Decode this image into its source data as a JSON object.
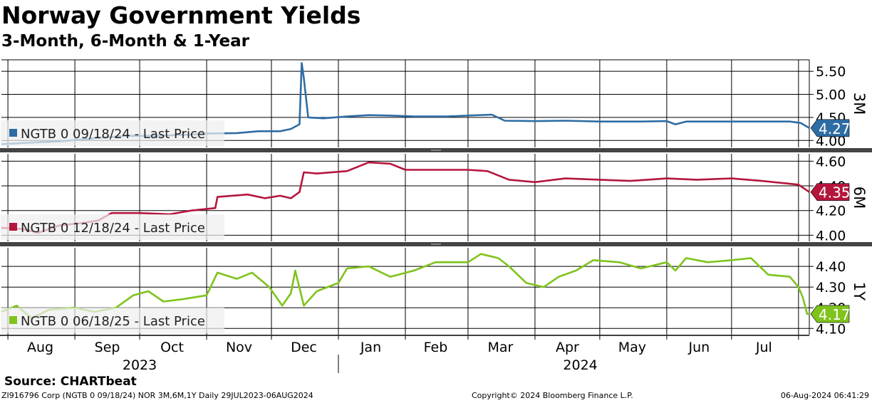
{
  "title": "Norway Government Yields",
  "subtitle": "3-Month, 6-Month & 1-Year",
  "source": "Source: CHARTbeat",
  "footer": {
    "left": "ZI916796 Corp (NGTB 0 09/18/24) NOR 3M,6M,1Y  Daily 29JUL2023-06AUG2024",
    "center": "Copyright© 2024 Bloomberg Finance L.P.",
    "right": "06-Aug-2024 06:41:29"
  },
  "chart_data": {
    "type": "line",
    "x_months": [
      "Aug",
      "Sep",
      "Oct",
      "Nov",
      "Dec",
      "Jan",
      "Feb",
      "Mar",
      "Apr",
      "May",
      "Jun",
      "Jul"
    ],
    "x_years": [
      "2023",
      "2024"
    ],
    "x_range": [
      "2023-07-29",
      "2024-08-06"
    ],
    "panels": [
      {
        "id": "3M",
        "axis_title": "3M",
        "legend": "NGTB 0 09/18/24 - Last Price",
        "color": "#2e6da4",
        "last_value": "4.27",
        "ylim": [
          3.85,
          5.75
        ],
        "yticks": [
          "5.50",
          "5.00",
          "4.50",
          "4.00"
        ],
        "points": [
          [
            "2023-07-29",
            3.92
          ],
          [
            "2023-08-10",
            3.95
          ],
          [
            "2023-08-25",
            3.98
          ],
          [
            "2023-09-10",
            4.05
          ],
          [
            "2023-09-25",
            4.1
          ],
          [
            "2023-10-10",
            4.1
          ],
          [
            "2023-10-25",
            4.13
          ],
          [
            "2023-11-01",
            4.15
          ],
          [
            "2023-11-15",
            4.16
          ],
          [
            "2023-11-25",
            4.2
          ],
          [
            "2023-12-05",
            4.2
          ],
          [
            "2023-12-10",
            4.25
          ],
          [
            "2023-12-14",
            4.35
          ],
          [
            "2023-12-15",
            5.68
          ],
          [
            "2023-12-16",
            5.35
          ],
          [
            "2023-12-18",
            4.5
          ],
          [
            "2023-12-25",
            4.48
          ],
          [
            "2024-01-05",
            4.52
          ],
          [
            "2024-01-15",
            4.55
          ],
          [
            "2024-01-25",
            4.54
          ],
          [
            "2024-02-05",
            4.52
          ],
          [
            "2024-02-20",
            4.52
          ],
          [
            "2024-03-01",
            4.54
          ],
          [
            "2024-03-12",
            4.56
          ],
          [
            "2024-03-18",
            4.43
          ],
          [
            "2024-04-01",
            4.42
          ],
          [
            "2024-04-15",
            4.43
          ],
          [
            "2024-05-01",
            4.41
          ],
          [
            "2024-05-20",
            4.41
          ],
          [
            "2024-06-01",
            4.42
          ],
          [
            "2024-06-05",
            4.35
          ],
          [
            "2024-06-10",
            4.41
          ],
          [
            "2024-06-25",
            4.41
          ],
          [
            "2024-07-10",
            4.41
          ],
          [
            "2024-07-28",
            4.41
          ],
          [
            "2024-08-02",
            4.38
          ],
          [
            "2024-08-06",
            4.27
          ]
        ]
      },
      {
        "id": "6M",
        "axis_title": "6M",
        "legend": "NGTB 0 12/18/24 - Last Price",
        "color": "#b5163c",
        "last_value": "4.35",
        "ylim": [
          3.95,
          4.66
        ],
        "yticks": [
          "4.60",
          "4.40",
          "4.20",
          "4.00"
        ],
        "points": [
          [
            "2023-07-29",
            4.06
          ],
          [
            "2023-08-08",
            4.05
          ],
          [
            "2023-08-15",
            4.02
          ],
          [
            "2023-08-25",
            4.08
          ],
          [
            "2023-09-05",
            4.1
          ],
          [
            "2023-09-12",
            4.12
          ],
          [
            "2023-09-18",
            4.18
          ],
          [
            "2023-10-01",
            4.18
          ],
          [
            "2023-10-15",
            4.17
          ],
          [
            "2023-10-25",
            4.2
          ],
          [
            "2023-11-05",
            4.22
          ],
          [
            "2023-11-06",
            4.31
          ],
          [
            "2023-11-20",
            4.33
          ],
          [
            "2023-11-28",
            4.3
          ],
          [
            "2023-12-05",
            4.32
          ],
          [
            "2023-12-10",
            4.3
          ],
          [
            "2023-12-14",
            4.35
          ],
          [
            "2023-12-16",
            4.51
          ],
          [
            "2023-12-22",
            4.5
          ],
          [
            "2024-01-05",
            4.52
          ],
          [
            "2024-01-15",
            4.59
          ],
          [
            "2024-01-25",
            4.58
          ],
          [
            "2024-02-01",
            4.53
          ],
          [
            "2024-02-15",
            4.53
          ],
          [
            "2024-03-01",
            4.53
          ],
          [
            "2024-03-10",
            4.52
          ],
          [
            "2024-03-20",
            4.45
          ],
          [
            "2024-04-01",
            4.43
          ],
          [
            "2024-04-15",
            4.46
          ],
          [
            "2024-05-01",
            4.45
          ],
          [
            "2024-05-15",
            4.44
          ],
          [
            "2024-06-01",
            4.46
          ],
          [
            "2024-06-15",
            4.45
          ],
          [
            "2024-07-01",
            4.46
          ],
          [
            "2024-07-15",
            4.44
          ],
          [
            "2024-08-01",
            4.41
          ],
          [
            "2024-08-06",
            4.35
          ]
        ]
      },
      {
        "id": "1Y",
        "axis_title": "1Y",
        "legend": "NGTB 0 06/18/25 - Last Price",
        "color": "#7fc31c",
        "last_value": "4.17",
        "ylim": [
          4.07,
          4.49
        ],
        "yticks": [
          "4.40",
          "4.30",
          "4.20",
          "4.10"
        ],
        "points": [
          [
            "2023-07-29",
            4.18
          ],
          [
            "2023-08-05",
            4.21
          ],
          [
            "2023-08-12",
            4.15
          ],
          [
            "2023-08-20",
            4.19
          ],
          [
            "2023-09-01",
            4.2
          ],
          [
            "2023-09-10",
            4.18
          ],
          [
            "2023-09-20",
            4.2
          ],
          [
            "2023-09-28",
            4.26
          ],
          [
            "2023-10-05",
            4.28
          ],
          [
            "2023-10-12",
            4.23
          ],
          [
            "2023-10-20",
            4.24
          ],
          [
            "2023-11-01",
            4.26
          ],
          [
            "2023-11-06",
            4.37
          ],
          [
            "2023-11-15",
            4.34
          ],
          [
            "2023-11-22",
            4.37
          ],
          [
            "2023-11-30",
            4.3
          ],
          [
            "2023-12-06",
            4.21
          ],
          [
            "2023-12-10",
            4.27
          ],
          [
            "2023-12-12",
            4.38
          ],
          [
            "2023-12-16",
            4.21
          ],
          [
            "2023-12-22",
            4.28
          ],
          [
            "2024-01-01",
            4.32
          ],
          [
            "2024-01-05",
            4.39
          ],
          [
            "2024-01-15",
            4.4
          ],
          [
            "2024-01-25",
            4.35
          ],
          [
            "2024-02-05",
            4.38
          ],
          [
            "2024-02-15",
            4.42
          ],
          [
            "2024-03-01",
            4.42
          ],
          [
            "2024-03-07",
            4.46
          ],
          [
            "2024-03-15",
            4.44
          ],
          [
            "2024-03-20",
            4.4
          ],
          [
            "2024-03-28",
            4.32
          ],
          [
            "2024-04-05",
            4.3
          ],
          [
            "2024-04-12",
            4.35
          ],
          [
            "2024-04-20",
            4.38
          ],
          [
            "2024-04-28",
            4.43
          ],
          [
            "2024-05-10",
            4.42
          ],
          [
            "2024-05-20",
            4.39
          ],
          [
            "2024-06-01",
            4.42
          ],
          [
            "2024-06-05",
            4.38
          ],
          [
            "2024-06-10",
            4.44
          ],
          [
            "2024-06-20",
            4.42
          ],
          [
            "2024-07-01",
            4.43
          ],
          [
            "2024-07-10",
            4.44
          ],
          [
            "2024-07-18",
            4.36
          ],
          [
            "2024-07-28",
            4.35
          ],
          [
            "2024-08-01",
            4.3
          ],
          [
            "2024-08-03",
            4.25
          ],
          [
            "2024-08-05",
            4.17
          ],
          [
            "2024-08-06",
            4.17
          ]
        ]
      }
    ]
  }
}
